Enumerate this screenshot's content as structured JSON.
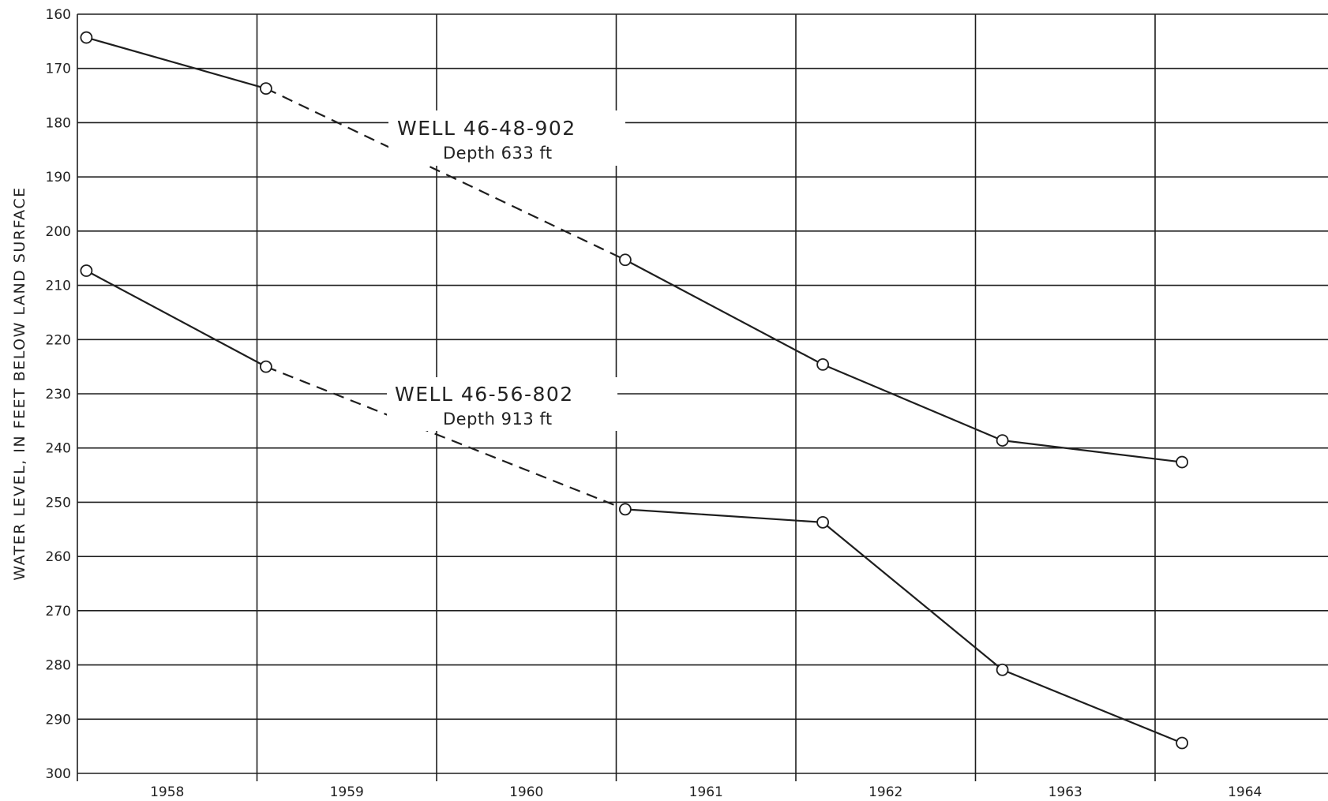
{
  "chart_data": {
    "type": "line",
    "ylabel": "WATER LEVEL, IN FEET BELOW LAND SURFACE",
    "xlabel": "",
    "title": "",
    "y_inverted": true,
    "ylim": [
      160,
      300
    ],
    "y_ticks": [
      160,
      170,
      180,
      190,
      200,
      210,
      220,
      230,
      240,
      250,
      260,
      270,
      280,
      290,
      300
    ],
    "x_ticks": [
      "1958",
      "1959",
      "1960",
      "1961",
      "1962",
      "1963",
      "1964"
    ],
    "xlim": [
      1958.0,
      1965.0
    ],
    "grid": true,
    "legend": "none",
    "series": [
      {
        "name": "WELL 46-48-902",
        "depth_label": "Depth 633 ft",
        "x": [
          1958.05,
          1959.05,
          1961.05,
          1962.15,
          1963.15,
          1964.15
        ],
        "y": [
          164.3,
          173.7,
          205.3,
          224.6,
          238.6,
          242.6
        ],
        "segments": [
          "solid",
          "dashed",
          "solid",
          "solid",
          "solid"
        ]
      },
      {
        "name": "WELL 46-56-802",
        "depth_label": "Depth 913 ft",
        "x": [
          1958.05,
          1959.05,
          1961.05,
          1962.15,
          1963.15,
          1964.15
        ],
        "y": [
          207.3,
          225.0,
          251.3,
          253.7,
          280.9,
          294.4
        ],
        "segments": [
          "solid",
          "dashed",
          "solid",
          "solid",
          "solid"
        ]
      }
    ]
  }
}
